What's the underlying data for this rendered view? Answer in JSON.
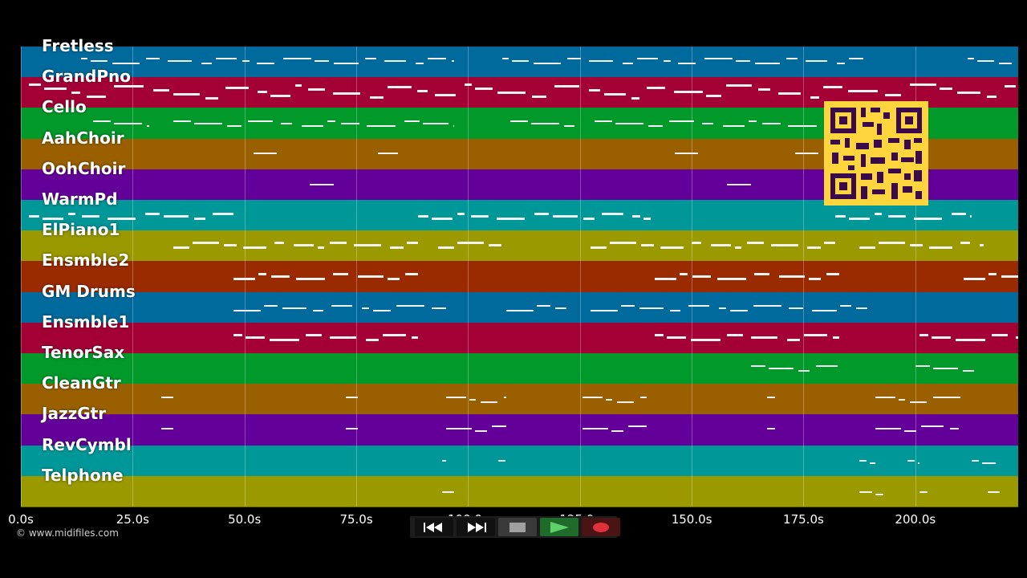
{
  "tracks": [
    {
      "name": "Fretless",
      "color": "#006a9c"
    },
    {
      "name": "GrandPno",
      "color": "#a30035"
    },
    {
      "name": "Cello",
      "color": "#00992a"
    },
    {
      "name": "AahChoir",
      "color": "#9a6000"
    },
    {
      "name": "OohChoir",
      "color": "#64009a"
    },
    {
      "name": "WarmPd",
      "color": "#009799"
    },
    {
      "name": "ElPiano1",
      "color": "#9a9900"
    },
    {
      "name": "Ensmble2",
      "color": "#9a2b00"
    },
    {
      "name": "GM Drums",
      "color": "#006a9c"
    },
    {
      "name": "Ensmble1",
      "color": "#a30035"
    },
    {
      "name": "TenorSax",
      "color": "#00992a"
    },
    {
      "name": "CleanGtr",
      "color": "#9a6000"
    },
    {
      "name": "JazzGtr",
      "color": "#64009a"
    },
    {
      "name": "RevCymbl",
      "color": "#009799"
    },
    {
      "name": "Telphone",
      "color": "#9a9900"
    }
  ],
  "timeline": {
    "ticks": [
      "0.0s",
      "25.0s",
      "50.0s",
      "75.0s",
      "100.0s",
      "125.0s",
      "150.0s",
      "175.0s",
      "200.0s"
    ],
    "tick_values": [
      0,
      25,
      50,
      75,
      100,
      125,
      150,
      175,
      200
    ],
    "range": [
      0,
      223
    ]
  },
  "copyright": "© www.midifiles.com",
  "controls": {
    "rewind_icon": "rewind-icon",
    "fast_forward_icon": "fast-forward-icon",
    "stop_icon": "stop-icon",
    "play_icon": "play-icon",
    "record_icon": "record-icon"
  },
  "qr_icon": "qr-code-icon"
}
